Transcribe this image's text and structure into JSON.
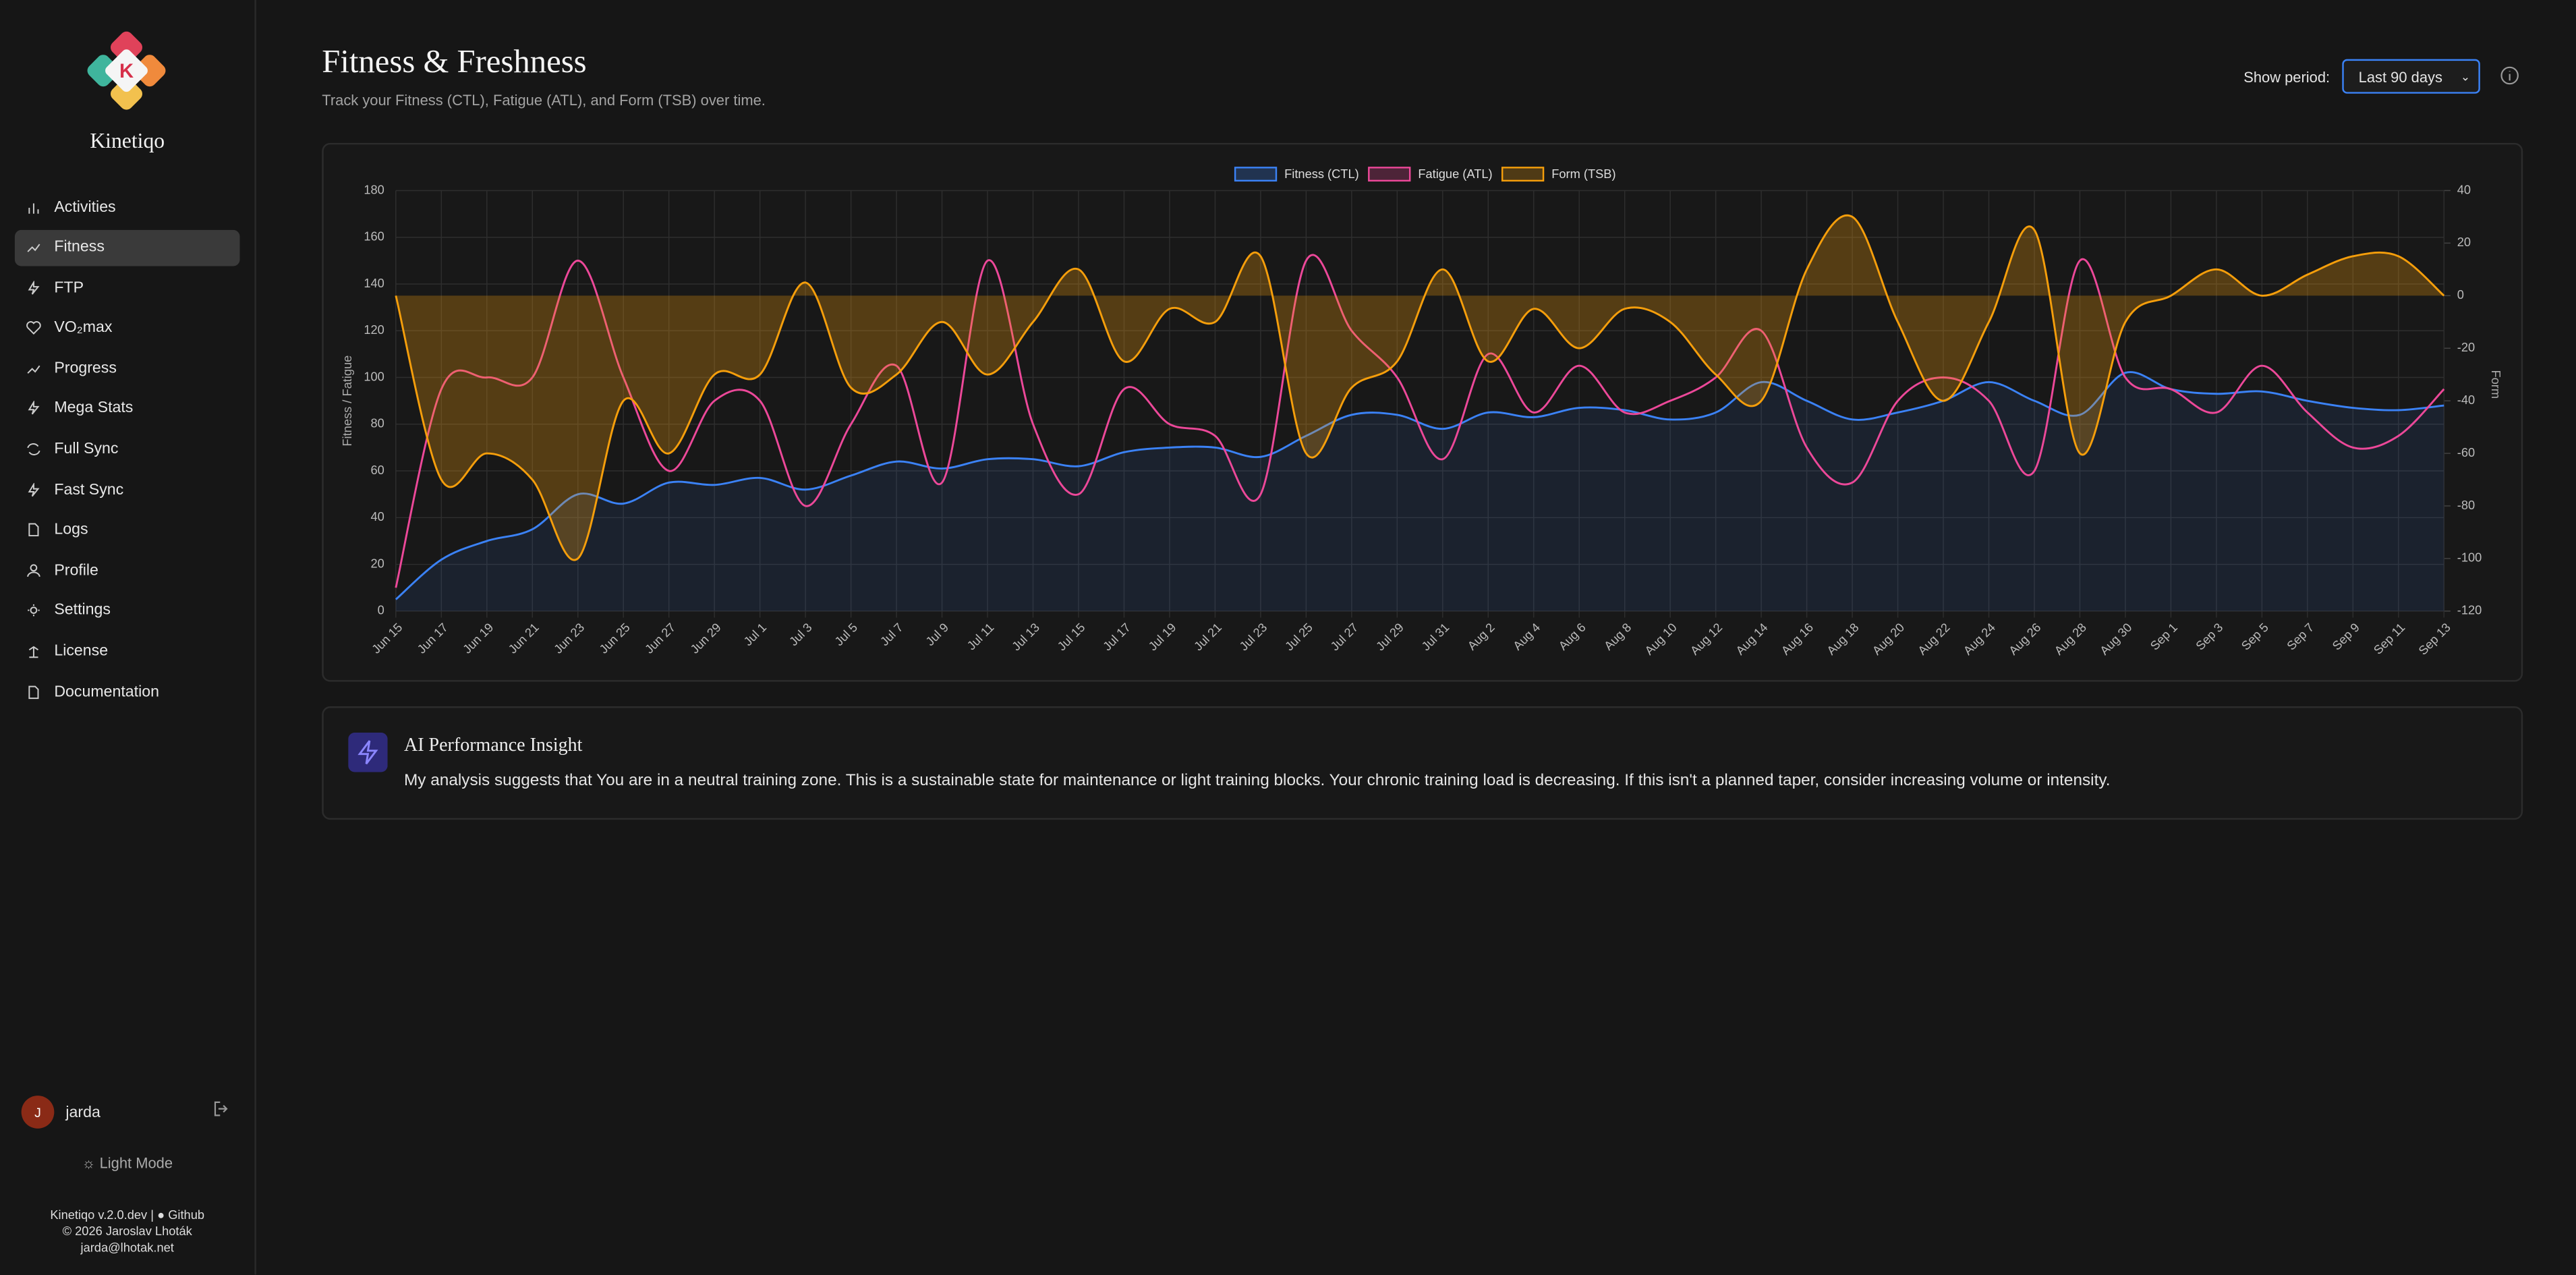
{
  "sidebar": {
    "brand": "Kinetiqo",
    "logo_letter": "K",
    "nav": [
      "Activities",
      "Fitness",
      "FTP",
      "VO₂max",
      "Progress",
      "Mega Stats",
      "Full Sync",
      "Fast Sync",
      "Logs",
      "Profile",
      "Settings",
      "License",
      "Documentation"
    ],
    "user": {
      "initial": "J",
      "name": "jarda"
    },
    "theme_toggle": "Light Mode",
    "footer": {
      "version": "Kinetiqo v.2.0.dev |",
      "github": "Github",
      "copyright": "© 2026 Jaroslav Lhoták",
      "email": "jarda@lhotak.net"
    }
  },
  "header": {
    "title": "Fitness & Freshness",
    "subtitle": "Track your Fitness (CTL), Fatigue (ATL), and Form (TSB) over time.",
    "period_label": "Show period:",
    "period_value": "Last 90 days"
  },
  "chart_data": {
    "type": "line",
    "categories": [
      "Jun 15",
      "Jun 17",
      "Jun 19",
      "Jun 21",
      "Jun 23",
      "Jun 25",
      "Jun 27",
      "Jun 29",
      "Jul 1",
      "Jul 3",
      "Jul 5",
      "Jul 7",
      "Jul 9",
      "Jul 11",
      "Jul 13",
      "Jul 15",
      "Jul 17",
      "Jul 19",
      "Jul 21",
      "Jul 23",
      "Jul 25",
      "Jul 27",
      "Jul 29",
      "Jul 31",
      "Aug 2",
      "Aug 4",
      "Aug 6",
      "Aug 8",
      "Aug 10",
      "Aug 12",
      "Aug 14",
      "Aug 16",
      "Aug 18",
      "Aug 20",
      "Aug 22",
      "Aug 24",
      "Aug 26",
      "Aug 28",
      "Aug 30",
      "Sep 1",
      "Sep 3",
      "Sep 5",
      "Sep 7",
      "Sep 9",
      "Sep 11",
      "Sep 13"
    ],
    "series": [
      {
        "name": "Fitness (CTL)",
        "color": "#3b82f6",
        "fill": true,
        "values": [
          5,
          22,
          30,
          35,
          50,
          46,
          55,
          54,
          57,
          52,
          58,
          64,
          61,
          65,
          65,
          62,
          68,
          70,
          70,
          66,
          75,
          84,
          84,
          78,
          85,
          83,
          87,
          86,
          82,
          85,
          98,
          90,
          82,
          85,
          90,
          98,
          90,
          84,
          102,
          95,
          93,
          94,
          90,
          87,
          86,
          88
        ]
      },
      {
        "name": "Fatigue (ATL)",
        "color": "#ec4899",
        "fill": false,
        "values": [
          10,
          95,
          100,
          100,
          150,
          100,
          60,
          90,
          90,
          45,
          80,
          105,
          55,
          150,
          80,
          50,
          95,
          80,
          75,
          50,
          150,
          120,
          100,
          65,
          110,
          85,
          105,
          85,
          90,
          100,
          120,
          70,
          55,
          90,
          100,
          90,
          60,
          150,
          100,
          95,
          85,
          105,
          85,
          70,
          75,
          95
        ]
      },
      {
        "name": "Form (TSB)",
        "color": "#f59e0b",
        "fill": true,
        "axis": "y2",
        "values": [
          0,
          -70,
          -60,
          -70,
          -100,
          -40,
          -60,
          -30,
          -30,
          5,
          -35,
          -30,
          -10,
          -30,
          -10,
          10,
          -25,
          -5,
          -10,
          15,
          -60,
          -35,
          -25,
          10,
          -25,
          -5,
          -20,
          -5,
          -10,
          -30,
          -40,
          10,
          30,
          -10,
          -40,
          -10,
          25,
          -60,
          -10,
          0,
          10,
          0,
          8,
          15,
          15,
          0
        ]
      }
    ],
    "ylim": [
      0,
      180
    ],
    "yticks": [
      0,
      20,
      40,
      60,
      80,
      100,
      120,
      140,
      160,
      180
    ],
    "y2lim": [
      -120,
      40
    ],
    "y2ticks": [
      -120,
      -100,
      -80,
      -60,
      -40,
      -20,
      0,
      20,
      40
    ],
    "ylabel": "Fitness / Fatigue",
    "y2label": "Form",
    "grid": true,
    "legend": "top"
  },
  "insight": {
    "title": "AI Performance Insight",
    "text": "My analysis suggests that You are in a neutral training zone. This is a sustainable state for maintenance or light training blocks. Your chronic training load is decreasing. If this isn't a planned taper, consider increasing volume or intensity."
  }
}
